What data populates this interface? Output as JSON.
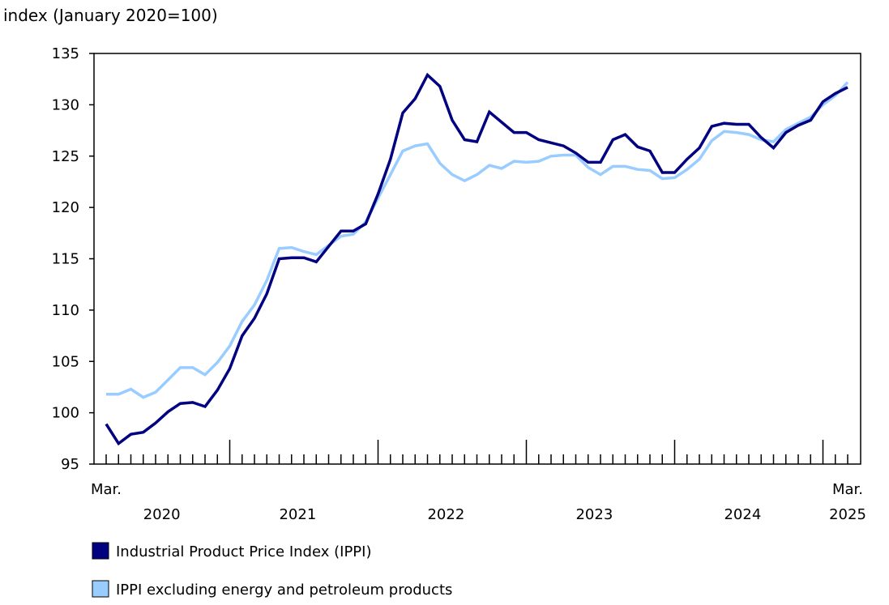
{
  "chart_data": {
    "type": "line",
    "ylabel": "index (January 2020=100)",
    "ylim": [
      95,
      135
    ],
    "yticks": [
      95,
      100,
      105,
      110,
      115,
      120,
      125,
      130,
      135
    ],
    "x_start": "2020-03",
    "x_end": "2025-03",
    "x_first_label": "Mar.",
    "x_last_label": "Mar.",
    "year_labels": [
      "2020",
      "2021",
      "2022",
      "2023",
      "2024",
      "2025"
    ],
    "grid": false,
    "legend_placement": "bottom",
    "series": [
      {
        "name": "Industrial Product Price Index (IPPI)",
        "color": "#000080",
        "values": [
          98.9,
          97.0,
          97.9,
          98.1,
          99.0,
          100.1,
          100.9,
          101.0,
          100.6,
          102.2,
          104.3,
          107.5,
          109.2,
          111.6,
          115.0,
          115.1,
          115.1,
          114.7,
          116.2,
          117.7,
          117.7,
          118.4,
          121.3,
          124.7,
          129.2,
          130.6,
          132.9,
          131.8,
          128.5,
          126.6,
          126.4,
          129.3,
          128.3,
          127.3,
          127.3,
          126.6,
          126.3,
          126.0,
          125.3,
          124.4,
          124.4,
          126.6,
          127.1,
          125.9,
          125.5,
          123.4,
          123.4,
          124.7,
          125.8,
          127.9,
          128.2,
          128.1,
          128.1,
          126.8,
          125.8,
          127.3,
          128.0,
          128.5,
          130.3,
          131.1,
          131.7
        ]
      },
      {
        "name": "IPPI excluding energy and petroleum products",
        "color": "#99ccff",
        "values": [
          101.8,
          101.8,
          102.3,
          101.5,
          102.0,
          103.2,
          104.4,
          104.4,
          103.7,
          104.9,
          106.5,
          108.9,
          110.5,
          112.9,
          116.0,
          116.1,
          115.7,
          115.4,
          116.3,
          117.2,
          117.4,
          118.6,
          120.9,
          123.2,
          125.5,
          126.0,
          126.2,
          124.3,
          123.2,
          122.6,
          123.2,
          124.1,
          123.8,
          124.5,
          124.4,
          124.5,
          125.0,
          125.1,
          125.1,
          123.9,
          123.2,
          124.0,
          124.0,
          123.7,
          123.6,
          122.8,
          122.9,
          123.7,
          124.7,
          126.5,
          127.4,
          127.3,
          127.1,
          126.6,
          126.4,
          127.6,
          128.2,
          128.8,
          130.0,
          130.9,
          132.2
        ]
      }
    ]
  }
}
